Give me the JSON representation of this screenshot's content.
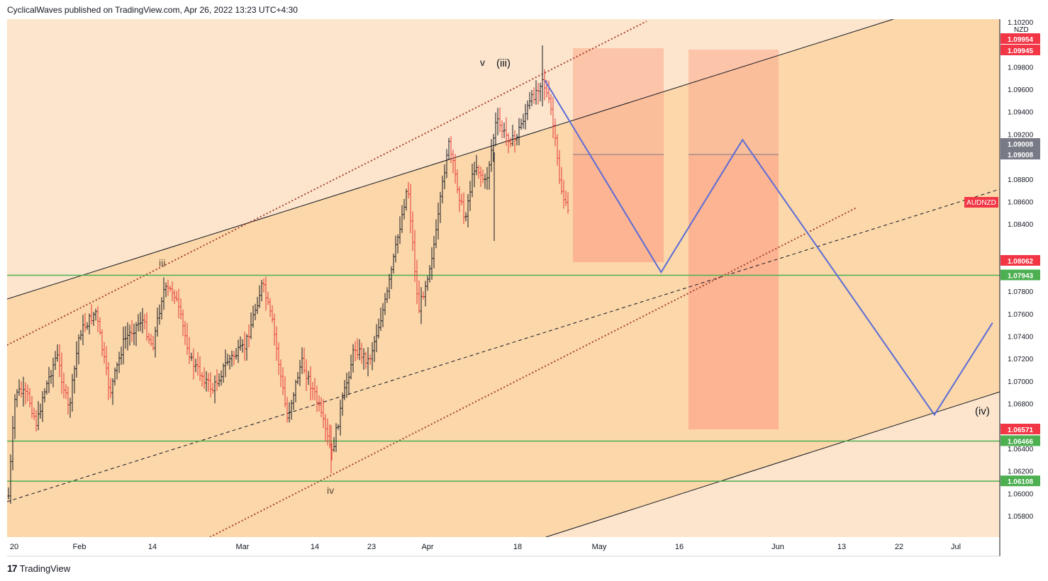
{
  "header": {
    "published_text": "CyclicalWaves published on TradingView.com, Apr 26, 2022 13:23 UTC+4:30"
  },
  "footer": {
    "logo": "17",
    "brand": "TradingView"
  },
  "colors": {
    "background_outer": "#fce5cc",
    "background_channel": "#fbd7aa",
    "support_green": "#4caf50",
    "price_up": "#131722",
    "price_down": "#e53935",
    "projection_blue": "#5b6cd6",
    "box_fill": "#fca98c",
    "dotted_red": "#a8422f",
    "badge_red": "#f23645",
    "badge_grey": "#787b86"
  },
  "chart_data": {
    "type": "candlestick",
    "symbol": "AUDNZD",
    "currency": "NZD",
    "x_tick_labels": [
      "20",
      "Feb",
      "14",
      "Mar",
      "14",
      "23",
      "Apr",
      "18",
      "May",
      "16",
      "Jun",
      "13",
      "22",
      "Jul"
    ],
    "y_tick_labels": [
      "1.10200",
      "1.09800",
      "1.09600",
      "1.09400",
      "1.09200",
      "1.08800",
      "1.08600",
      "1.08400",
      "1.07800",
      "1.07600",
      "1.07400",
      "1.07200",
      "1.07000",
      "1.06800",
      "1.06400",
      "1.06200",
      "1.06000",
      "1.05800"
    ],
    "ylim": [
      1.0565,
      1.1025
    ],
    "horizontal_levels": [
      {
        "value": 1.07943,
        "label": "1.07943"
      },
      {
        "value": 1.06466,
        "label": "1.06466"
      },
      {
        "value": 1.06108,
        "label": "1.06108"
      }
    ],
    "price_badges": [
      {
        "value": 1.09954,
        "label": "1.09954",
        "color": "#f23645"
      },
      {
        "value": 1.09945,
        "label": "1.09945",
        "color": "#f23645"
      },
      {
        "value": 1.09008,
        "label": "1.09008",
        "color": "#787b86"
      },
      {
        "value": 1.09008,
        "label": "1.09008",
        "color": "#787b86"
      },
      {
        "value": 1.08062,
        "label": "1.08062",
        "color": "#f23645"
      },
      {
        "value": 1.06571,
        "label": "1.06571",
        "color": "#f23645"
      }
    ],
    "symbol_badge": "AUDNZD",
    "wave_labels": [
      "v",
      "(iii)",
      "iii",
      "iv",
      "(iv)"
    ],
    "projection_path": [
      {
        "date": "2022-04-22",
        "value": 1.0968
      },
      {
        "date": "2022-05-12",
        "value": 1.0797
      },
      {
        "date": "2022-05-26",
        "value": 1.0915
      },
      {
        "date": "2022-06-28",
        "value": 1.067
      },
      {
        "date": "2022-07-08",
        "value": 1.0752
      }
    ]
  }
}
